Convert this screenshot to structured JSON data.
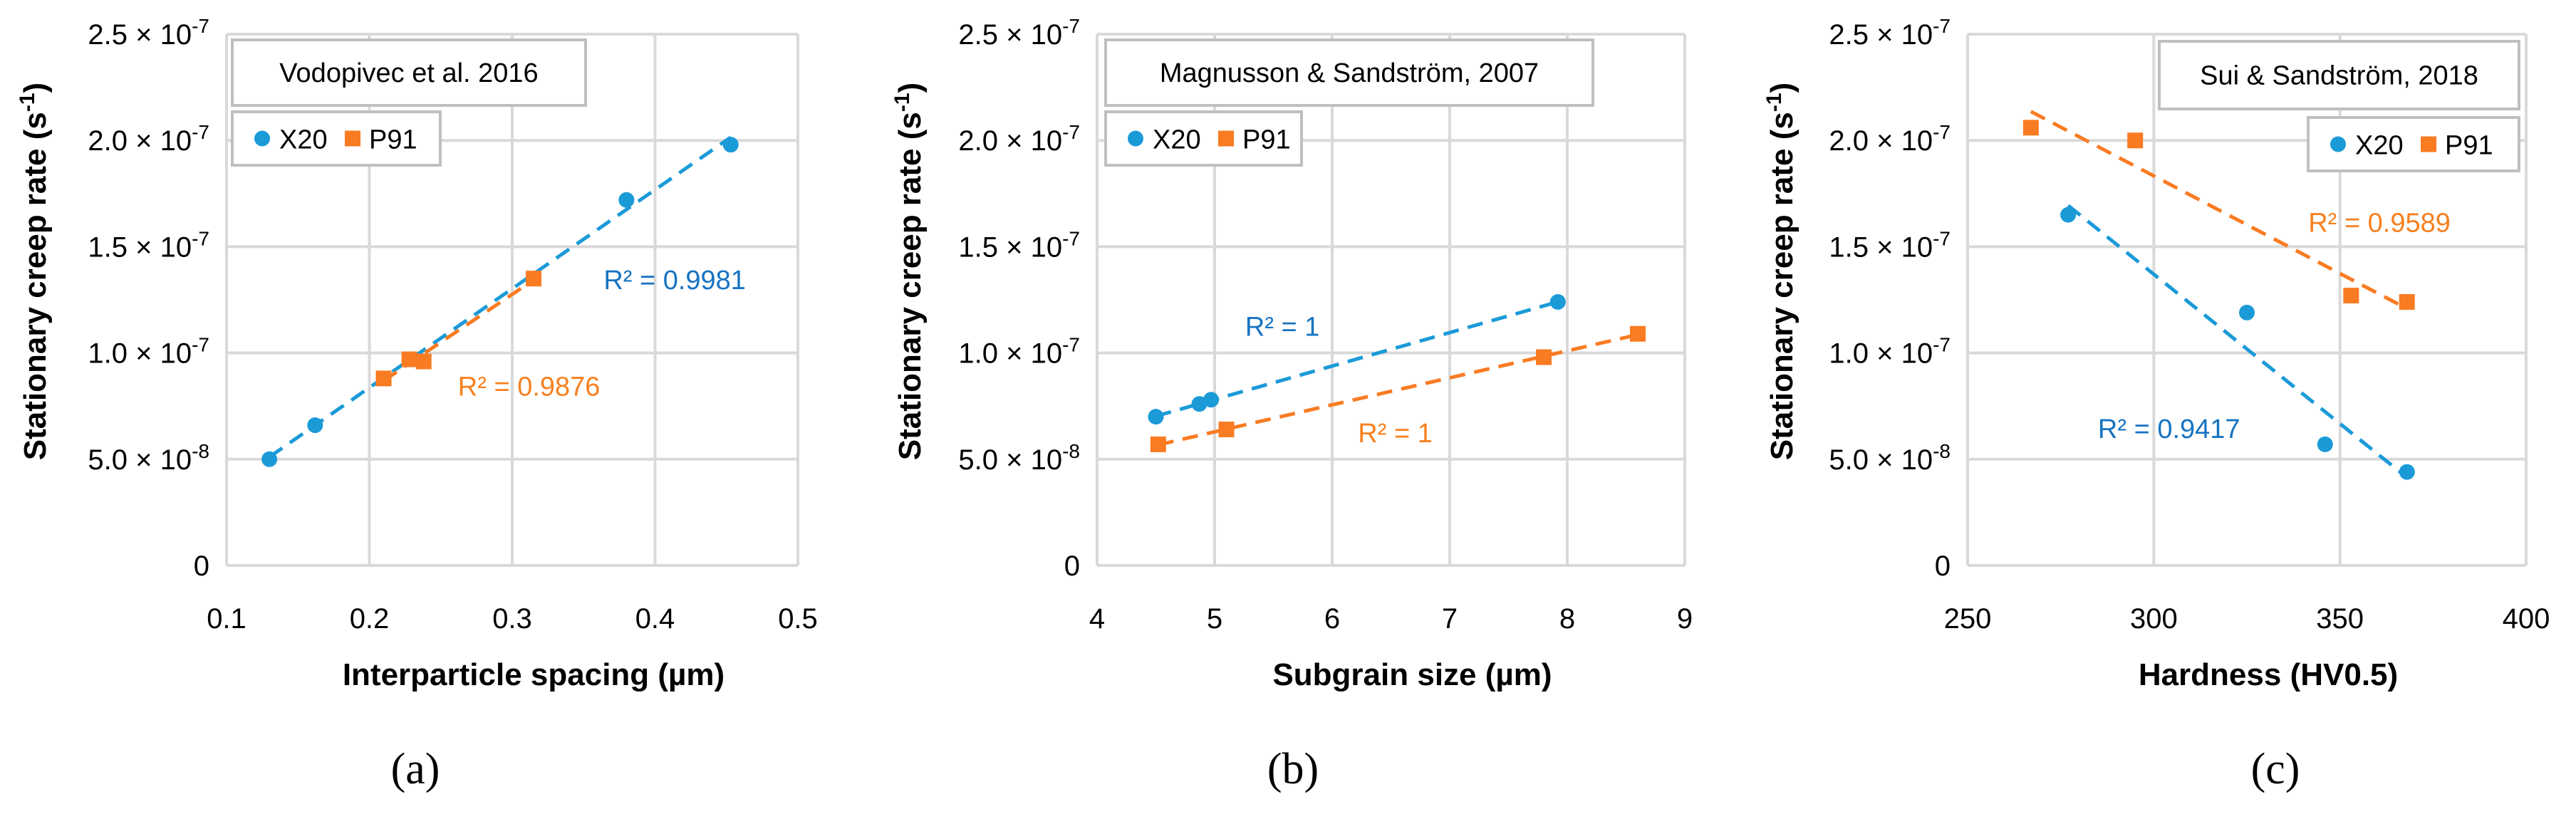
{
  "colors": {
    "x20": "#1b9ad8",
    "p91": "#f97b22",
    "x20_text": "#1673c2",
    "p91_text": "#f7801f",
    "grid": "#d9d9d9",
    "box": "#bfbfbf"
  },
  "chart_data": [
    {
      "type": "scatter",
      "panel_label": "(a)",
      "title": "Vodopivec et al. 2016",
      "xlabel": "Interparticle spacing (µm)",
      "ylabel": {
        "pre": "Stationary creep rate (s",
        "sup": "-1",
        "post": ")"
      },
      "xlim": [
        0.1,
        0.5
      ],
      "ylim": [
        0,
        2.5e-07
      ],
      "xticks": [
        {
          "v": 0.1,
          "label": "0.1"
        },
        {
          "v": 0.2,
          "label": "0.2"
        },
        {
          "v": 0.3,
          "label": "0.3"
        },
        {
          "v": 0.4,
          "label": "0.4"
        },
        {
          "v": 0.5,
          "label": "0.5"
        }
      ],
      "yticks": [
        {
          "v": 0,
          "m": "0",
          "e": ""
        },
        {
          "v": 5e-08,
          "m": "5.0 × 10",
          "e": "-8"
        },
        {
          "v": 1e-07,
          "m": "1.0 × 10",
          "e": "-7"
        },
        {
          "v": 1.5e-07,
          "m": "1.5 × 10",
          "e": "-7"
        },
        {
          "v": 2e-07,
          "m": "2.0 × 10",
          "e": "-7"
        },
        {
          "v": 2.5e-07,
          "m": "2.5 × 10",
          "e": "-7"
        }
      ],
      "grid": true,
      "legend_placement": "top-left",
      "series": [
        {
          "name": "X20",
          "marker": "circle",
          "x": [
            0.13,
            0.162,
            0.38,
            0.453
          ],
          "y": [
            5e-08,
            6.6e-08,
            1.72e-07,
            1.98e-07
          ],
          "trendline": "linear",
          "r2_label": "R² = 0.9981"
        },
        {
          "name": "P91",
          "marker": "square",
          "x": [
            0.21,
            0.228,
            0.238,
            0.315
          ],
          "y": [
            8.8e-08,
            9.7e-08,
            9.6e-08,
            1.35e-07
          ],
          "trendline": "linear",
          "r2_label": "R² = 0.9876"
        }
      ]
    },
    {
      "type": "scatter",
      "panel_label": "(b)",
      "title": "Magnusson & Sandström, 2007",
      "xlabel": "Subgrain size (µm)",
      "ylabel": {
        "pre": "Stationary creep rate (s",
        "sup": "-1",
        "post": ")"
      },
      "xlim": [
        4,
        9
      ],
      "ylim": [
        0,
        2.5e-07
      ],
      "xticks": [
        {
          "v": 4,
          "label": "4"
        },
        {
          "v": 5,
          "label": "5"
        },
        {
          "v": 6,
          "label": "6"
        },
        {
          "v": 7,
          "label": "7"
        },
        {
          "v": 8,
          "label": "8"
        },
        {
          "v": 9,
          "label": "9"
        }
      ],
      "yticks": [
        {
          "v": 0,
          "m": "0",
          "e": ""
        },
        {
          "v": 5e-08,
          "m": "5.0 × 10",
          "e": "-8"
        },
        {
          "v": 1e-07,
          "m": "1.0 × 10",
          "e": "-7"
        },
        {
          "v": 1.5e-07,
          "m": "1.5 × 10",
          "e": "-7"
        },
        {
          "v": 2e-07,
          "m": "2.0 × 10",
          "e": "-7"
        },
        {
          "v": 2.5e-07,
          "m": "2.5 × 10",
          "e": "-7"
        }
      ],
      "grid": true,
      "legend_placement": "top-left",
      "series": [
        {
          "name": "X20",
          "marker": "circle",
          "x": [
            4.5,
            4.87,
            4.97,
            7.92
          ],
          "y": [
            7e-08,
            7.6e-08,
            7.8e-08,
            1.24e-07
          ],
          "trendline": "linear",
          "r2_label": "R² = 1"
        },
        {
          "name": "P91",
          "marker": "square",
          "x": [
            4.52,
            5.1,
            7.8,
            8.6
          ],
          "y": [
            5.7e-08,
            6.4e-08,
            9.8e-08,
            1.09e-07
          ],
          "trendline": "linear",
          "r2_label": "R² = 1"
        }
      ]
    },
    {
      "type": "scatter",
      "panel_label": "(c)",
      "title": "Sui & Sandström, 2018",
      "xlabel": "Hardness (HV0.5)",
      "ylabel": {
        "pre": "Stationary creep rate (s",
        "sup": "-1",
        "post": ")"
      },
      "xlim": [
        250,
        400
      ],
      "ylim": [
        0,
        2.5e-07
      ],
      "xticks": [
        {
          "v": 250,
          "label": "250"
        },
        {
          "v": 300,
          "label": "300"
        },
        {
          "v": 350,
          "label": "350"
        },
        {
          "v": 400,
          "label": "400"
        }
      ],
      "yticks": [
        {
          "v": 0,
          "m": "0",
          "e": ""
        },
        {
          "v": 5e-08,
          "m": "5.0 × 10",
          "e": "-8"
        },
        {
          "v": 1e-07,
          "m": "1.0 × 10",
          "e": "-7"
        },
        {
          "v": 1.5e-07,
          "m": "1.5 × 10",
          "e": "-7"
        },
        {
          "v": 2e-07,
          "m": "2.0 × 10",
          "e": "-7"
        },
        {
          "v": 2.5e-07,
          "m": "2.5 × 10",
          "e": "-7"
        }
      ],
      "grid": true,
      "legend_placement": "top-right",
      "series": [
        {
          "name": "X20",
          "marker": "circle",
          "x": [
            277,
            325,
            346,
            368
          ],
          "y": [
            1.65e-07,
            1.19e-07,
            5.7e-08,
            4.4e-08
          ],
          "trendline": "linear",
          "r2_label": "R² = 0.9417"
        },
        {
          "name": "P91",
          "marker": "square",
          "x": [
            267,
            295,
            353,
            368
          ],
          "y": [
            2.06e-07,
            2e-07,
            1.27e-07,
            1.24e-07
          ],
          "trendline": "linear",
          "r2_label": "R² = 0.9589"
        }
      ]
    }
  ]
}
